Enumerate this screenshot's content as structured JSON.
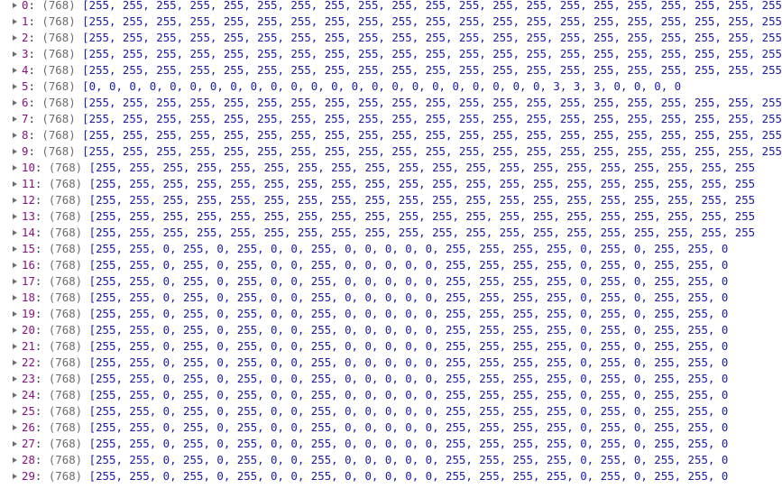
{
  "console": {
    "rows": [
      {
        "index": "0",
        "length": "(768)",
        "values": "[255, 255, 255, 255, 255, 255, 255, 255, 255, 255, 255, 255, 255, 255, 255, 255, 255, 255, 255, 255, 255"
      },
      {
        "index": "1",
        "length": "(768)",
        "values": "[255, 255, 255, 255, 255, 255, 255, 255, 255, 255, 255, 255, 255, 255, 255, 255, 255, 255, 255, 255, 255"
      },
      {
        "index": "2",
        "length": "(768)",
        "values": "[255, 255, 255, 255, 255, 255, 255, 255, 255, 255, 255, 255, 255, 255, 255, 255, 255, 255, 255, 255, 255"
      },
      {
        "index": "3",
        "length": "(768)",
        "values": "[255, 255, 255, 255, 255, 255, 255, 255, 255, 255, 255, 255, 255, 255, 255, 255, 255, 255, 255, 255, 255"
      },
      {
        "index": "4",
        "length": "(768)",
        "values": "[255, 255, 255, 255, 255, 255, 255, 255, 255, 255, 255, 255, 255, 255, 255, 255, 255, 255, 255, 255, 255"
      },
      {
        "index": "5",
        "length": "(768)",
        "values": "[0, 0, 0, 0, 0, 0, 0, 0, 0, 0, 0, 0, 0, 0, 0, 0, 0, 0, 0, 0, 0, 0, 0, 3, 3, 3, 0, 0, 0, 0"
      },
      {
        "index": "6",
        "length": "(768)",
        "values": "[255, 255, 255, 255, 255, 255, 255, 255, 255, 255, 255, 255, 255, 255, 255, 255, 255, 255, 255, 255, 255"
      },
      {
        "index": "7",
        "length": "(768)",
        "values": "[255, 255, 255, 255, 255, 255, 255, 255, 255, 255, 255, 255, 255, 255, 255, 255, 255, 255, 255, 255, 255"
      },
      {
        "index": "8",
        "length": "(768)",
        "values": "[255, 255, 255, 255, 255, 255, 255, 255, 255, 255, 255, 255, 255, 255, 255, 255, 255, 255, 255, 255, 255"
      },
      {
        "index": "9",
        "length": "(768)",
        "values": "[255, 255, 255, 255, 255, 255, 255, 255, 255, 255, 255, 255, 255, 255, 255, 255, 255, 255, 255, 255, 255"
      },
      {
        "index": "10",
        "length": "(768)",
        "values": "[255, 255, 255, 255, 255, 255, 255, 255, 255, 255, 255, 255, 255, 255, 255, 255, 255, 255, 255, 255"
      },
      {
        "index": "11",
        "length": "(768)",
        "values": "[255, 255, 255, 255, 255, 255, 255, 255, 255, 255, 255, 255, 255, 255, 255, 255, 255, 255, 255, 255"
      },
      {
        "index": "12",
        "length": "(768)",
        "values": "[255, 255, 255, 255, 255, 255, 255, 255, 255, 255, 255, 255, 255, 255, 255, 255, 255, 255, 255, 255"
      },
      {
        "index": "13",
        "length": "(768)",
        "values": "[255, 255, 255, 255, 255, 255, 255, 255, 255, 255, 255, 255, 255, 255, 255, 255, 255, 255, 255, 255"
      },
      {
        "index": "14",
        "length": "(768)",
        "values": "[255, 255, 255, 255, 255, 255, 255, 255, 255, 255, 255, 255, 255, 255, 255, 255, 255, 255, 255, 255"
      },
      {
        "index": "15",
        "length": "(768)",
        "values": "[255, 255, 0, 255, 0, 255, 0, 0, 255, 0, 0, 0, 0, 0, 255, 255, 255, 255, 0, 255, 0, 255, 255, 0"
      },
      {
        "index": "16",
        "length": "(768)",
        "values": "[255, 255, 0, 255, 0, 255, 0, 0, 255, 0, 0, 0, 0, 0, 255, 255, 255, 255, 0, 255, 0, 255, 255, 0"
      },
      {
        "index": "17",
        "length": "(768)",
        "values": "[255, 255, 0, 255, 0, 255, 0, 0, 255, 0, 0, 0, 0, 0, 255, 255, 255, 255, 0, 255, 0, 255, 255, 0"
      },
      {
        "index": "18",
        "length": "(768)",
        "values": "[255, 255, 0, 255, 0, 255, 0, 0, 255, 0, 0, 0, 0, 0, 255, 255, 255, 255, 0, 255, 0, 255, 255, 0"
      },
      {
        "index": "19",
        "length": "(768)",
        "values": "[255, 255, 0, 255, 0, 255, 0, 0, 255, 0, 0, 0, 0, 0, 255, 255, 255, 255, 0, 255, 0, 255, 255, 0"
      },
      {
        "index": "20",
        "length": "(768)",
        "values": "[255, 255, 0, 255, 0, 255, 0, 0, 255, 0, 0, 0, 0, 0, 255, 255, 255, 255, 0, 255, 0, 255, 255, 0"
      },
      {
        "index": "21",
        "length": "(768)",
        "values": "[255, 255, 0, 255, 0, 255, 0, 0, 255, 0, 0, 0, 0, 0, 255, 255, 255, 255, 0, 255, 0, 255, 255, 0"
      },
      {
        "index": "22",
        "length": "(768)",
        "values": "[255, 255, 0, 255, 0, 255, 0, 0, 255, 0, 0, 0, 0, 0, 255, 255, 255, 255, 0, 255, 0, 255, 255, 0"
      },
      {
        "index": "23",
        "length": "(768)",
        "values": "[255, 255, 0, 255, 0, 255, 0, 0, 255, 0, 0, 0, 0, 0, 255, 255, 255, 255, 0, 255, 0, 255, 255, 0"
      },
      {
        "index": "24",
        "length": "(768)",
        "values": "[255, 255, 0, 255, 0, 255, 0, 0, 255, 0, 0, 0, 0, 0, 255, 255, 255, 255, 0, 255, 0, 255, 255, 0"
      },
      {
        "index": "25",
        "length": "(768)",
        "values": "[255, 255, 0, 255, 0, 255, 0, 0, 255, 0, 0, 0, 0, 0, 255, 255, 255, 255, 0, 255, 0, 255, 255, 0"
      },
      {
        "index": "26",
        "length": "(768)",
        "values": "[255, 255, 0, 255, 0, 255, 0, 0, 255, 0, 0, 0, 0, 0, 255, 255, 255, 255, 0, 255, 0, 255, 255, 0"
      },
      {
        "index": "27",
        "length": "(768)",
        "values": "[255, 255, 0, 255, 0, 255, 0, 0, 255, 0, 0, 0, 0, 0, 255, 255, 255, 255, 0, 255, 0, 255, 255, 0"
      },
      {
        "index": "28",
        "length": "(768)",
        "values": "[255, 255, 0, 255, 0, 255, 0, 0, 255, 0, 0, 0, 0, 0, 255, 255, 255, 255, 0, 255, 0, 255, 255, 0"
      },
      {
        "index": "29",
        "length": "(768)",
        "values": "[255, 255, 0, 255, 0, 255, 0, 0, 255, 0, 0, 0, 0, 0, 255, 255, 255, 255, 0, 255, 0, 255, 255, 0"
      }
    ]
  },
  "colors": {
    "index": "#881280",
    "length": "#6a6a6a",
    "values": "#1a1aa6",
    "expand_arrow": "#6e6e6e"
  },
  "icons": {
    "expand": "triangle-right-icon"
  }
}
